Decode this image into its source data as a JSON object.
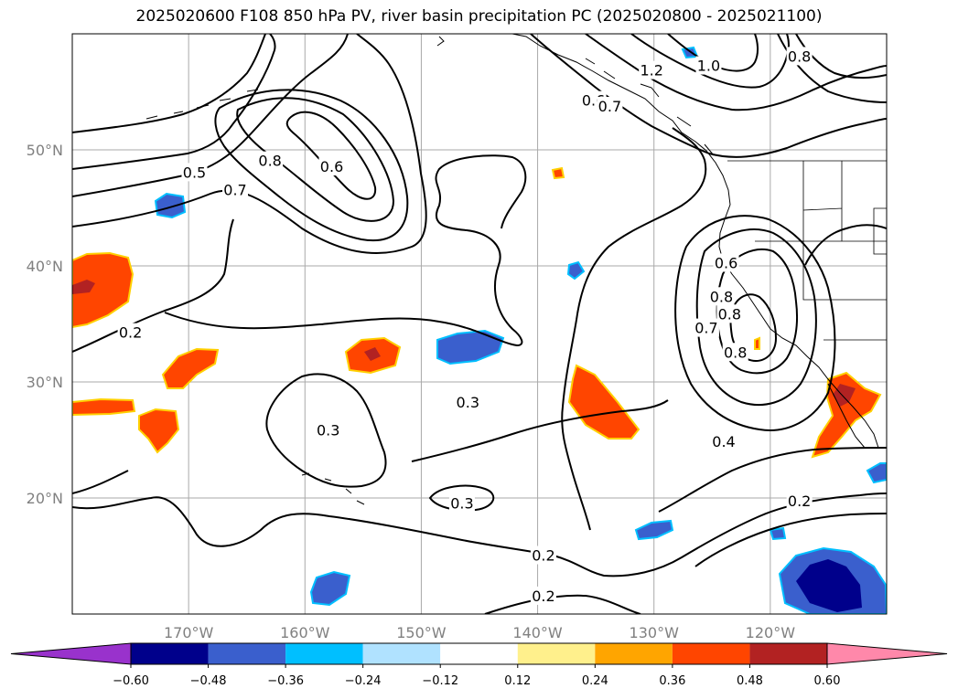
{
  "title": "2025020600 F108 850 hPa PV, river basin precipitation PC (2025020800 - 2025021100)",
  "map_extent": {
    "lon": [
      -180,
      -110
    ],
    "lat": [
      10,
      60
    ]
  },
  "lat_labels": [
    {
      "lat": 50,
      "text": "50°N"
    },
    {
      "lat": 40,
      "text": "40°N"
    },
    {
      "lat": 30,
      "text": "30°N"
    },
    {
      "lat": 20,
      "text": "20°N"
    }
  ],
  "lon_labels": [
    {
      "lon": -170,
      "text": "170°W"
    },
    {
      "lon": -160,
      "text": "160°W"
    },
    {
      "lon": -150,
      "text": "150°W"
    },
    {
      "lon": -140,
      "text": "140°W"
    },
    {
      "lon": -130,
      "text": "130°W"
    },
    {
      "lon": -120,
      "text": "120°W"
    }
  ],
  "contour_labels": [
    {
      "text": "0.8",
      "lon": -163,
      "lat": 49.0
    },
    {
      "text": "0.7",
      "lon": -166,
      "lat": 46.5
    },
    {
      "text": "0.6",
      "lon": -157.7,
      "lat": 48.5
    },
    {
      "text": "0.5",
      "lon": -169.5,
      "lat": 48.0
    },
    {
      "text": "0.2",
      "lon": -175,
      "lat": 34.2
    },
    {
      "text": "0.3",
      "lon": -146,
      "lat": 28.2
    },
    {
      "text": "0.3",
      "lon": -158,
      "lat": 25.8
    },
    {
      "text": "0.3",
      "lon": -146.5,
      "lat": 19.5
    },
    {
      "text": "0.2",
      "lon": -139.5,
      "lat": 15.0
    },
    {
      "text": "0.2",
      "lon": -139.5,
      "lat": 11.5
    },
    {
      "text": "0.6",
      "lon": -135.2,
      "lat": 54.2
    },
    {
      "text": "0.7",
      "lon": -133.8,
      "lat": 53.7
    },
    {
      "text": "1.2",
      "lon": -130.2,
      "lat": 56.8
    },
    {
      "text": "1.0",
      "lon": -125.3,
      "lat": 57.2
    },
    {
      "text": "0.8",
      "lon": -117.5,
      "lat": 58.0
    },
    {
      "text": "0.6",
      "lon": -123.8,
      "lat": 40.2
    },
    {
      "text": "0.8",
      "lon": -124.2,
      "lat": 37.3
    },
    {
      "text": "0.8",
      "lon": -123.5,
      "lat": 35.8
    },
    {
      "text": "0.7",
      "lon": -125.5,
      "lat": 34.6
    },
    {
      "text": "0.8",
      "lon": -123.0,
      "lat": 32.5
    },
    {
      "text": "0.4",
      "lon": -124.0,
      "lat": 24.8
    },
    {
      "text": "0.2",
      "lon": -117.5,
      "lat": 19.7
    }
  ],
  "colorbar": {
    "colors": [
      "#9932cc",
      "#00008b",
      "#3a5fcd",
      "#00bfff",
      "#b0e2ff",
      "#ffffff",
      "#fff08c",
      "#ffa500",
      "#ff4500",
      "#b22222",
      "#ff88aa"
    ],
    "ticks": [
      "−0.60",
      "−0.48",
      "−0.36",
      "−0.24",
      "−0.12",
      "0.12",
      "0.24",
      "0.36",
      "0.48",
      "0.60"
    ]
  }
}
